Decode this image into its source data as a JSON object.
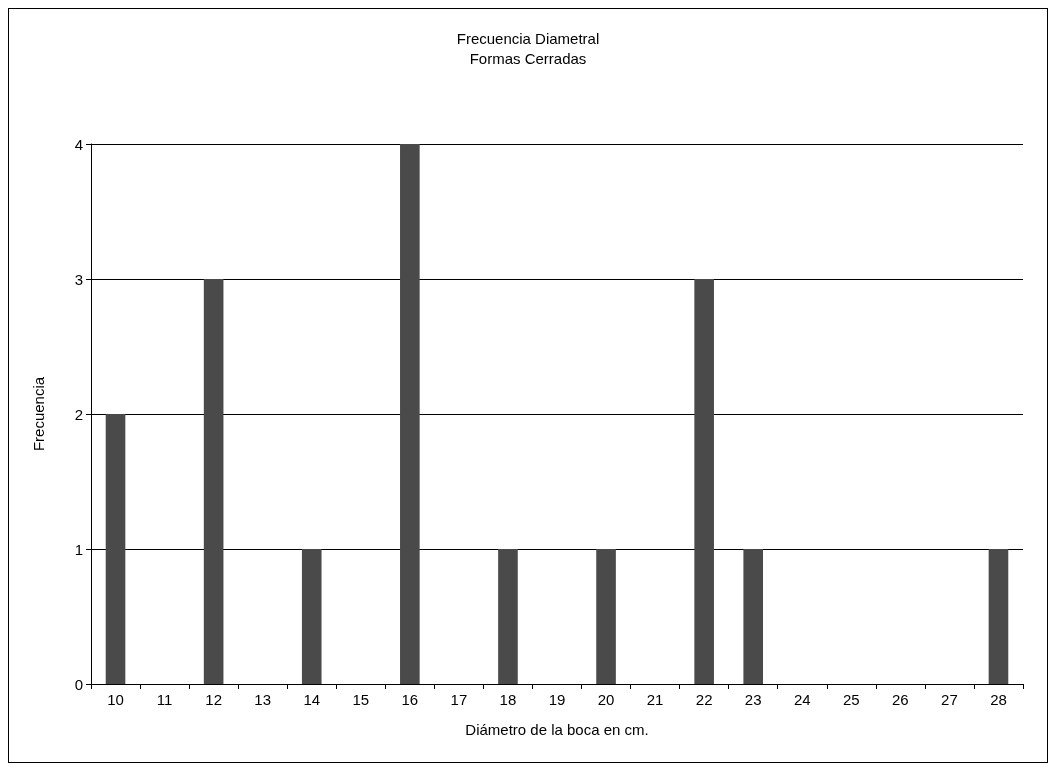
{
  "chart_data": {
    "type": "bar",
    "title": "Frecuencia Diametral\nFormas Cerradas",
    "xlabel": "Diámetro de la boca en cm.",
    "ylabel": "Frecuencia",
    "categories": [
      "10",
      "11",
      "12",
      "13",
      "14",
      "15",
      "16",
      "17",
      "18",
      "19",
      "20",
      "21",
      "22",
      "23",
      "24",
      "25",
      "26",
      "27",
      "28"
    ],
    "values": [
      2,
      0,
      3,
      0,
      1,
      0,
      4,
      0,
      1,
      0,
      1,
      0,
      3,
      1,
      0,
      0,
      0,
      0,
      1
    ],
    "color": "#4a4a4a",
    "ylim": [
      0,
      4
    ],
    "yticks": [
      0,
      1,
      2,
      3,
      4
    ],
    "grid": "y"
  }
}
